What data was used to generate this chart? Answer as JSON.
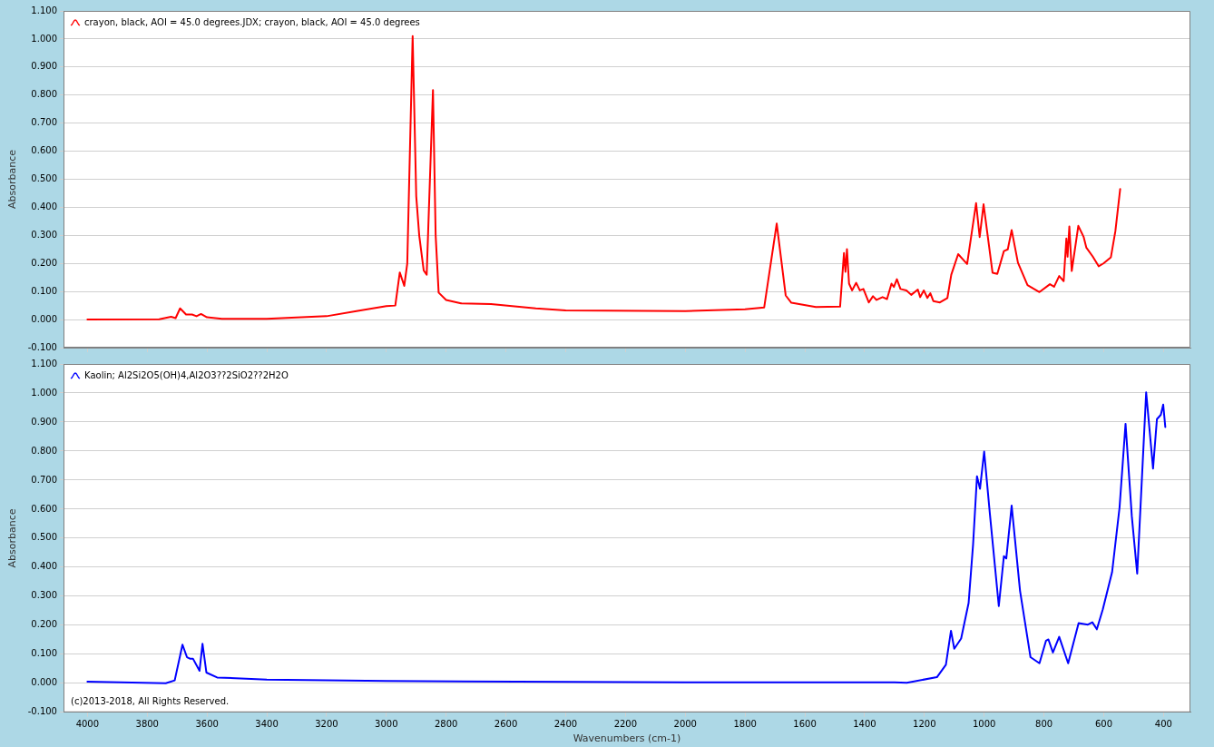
{
  "chart_data": [
    {
      "type": "line",
      "ylabel": "Absorbance",
      "xlim": [
        4080,
        310
      ],
      "xticks": [
        4000,
        3800,
        3600,
        3400,
        3200,
        3000,
        2800,
        2600,
        2400,
        2200,
        2000,
        1800,
        1600,
        1400,
        1200,
        1000,
        800,
        600,
        400
      ],
      "ylim": [
        -0.1,
        1.1
      ],
      "yticks": [
        {
          "value": -0.1,
          "label": "-0.100"
        },
        {
          "value": 0,
          "label": "0.000"
        },
        {
          "value": 0.1,
          "label": "0.100"
        },
        {
          "value": 0.2,
          "label": "0.200"
        },
        {
          "value": 0.3,
          "label": "0.300"
        },
        {
          "value": 0.4,
          "label": "0.400"
        },
        {
          "value": 0.5,
          "label": "0.500"
        },
        {
          "value": 0.6,
          "label": "0.600"
        },
        {
          "value": 0.7,
          "label": "0.700"
        },
        {
          "value": 0.8,
          "label": "0.800"
        },
        {
          "value": 0.9,
          "label": "0.900"
        },
        {
          "value": 1.0,
          "label": "1.000"
        },
        {
          "value": 1.1,
          "label": "1.100"
        }
      ],
      "tick_labels": "y",
      "grid": "y",
      "legend": "top left",
      "marker": "none",
      "line_style": "solid",
      "series": [
        {
          "name": "crayon, black, AOI = 45.0 degrees.JDX; crayon, black, AOI = 45.0 degrees",
          "color": "#ff0000",
          "x": [
            4000,
            3760,
            3720,
            3705,
            3690,
            3670,
            3650,
            3635,
            3620,
            3600,
            3550,
            3400,
            3200,
            3100,
            3000,
            2970,
            2955,
            2940,
            2930,
            2912,
            2900,
            2890,
            2875,
            2865,
            2844,
            2835,
            2825,
            2800,
            2750,
            2650,
            2500,
            2400,
            2000,
            1800,
            1736,
            1694,
            1664,
            1645,
            1563,
            1482,
            1469,
            1464,
            1459,
            1452,
            1442,
            1428,
            1416,
            1404,
            1386,
            1372,
            1360,
            1340,
            1325,
            1310,
            1302,
            1292,
            1280,
            1260,
            1244,
            1222,
            1214,
            1202,
            1190,
            1180,
            1170,
            1148,
            1123,
            1110,
            1087,
            1057,
            1027,
            1015,
            1002,
            972,
            956,
            934,
            921,
            908,
            887,
            855,
            815,
            780,
            766,
            749,
            734,
            725,
            721,
            715,
            707,
            685,
            667,
            658,
            637,
            617,
            601,
            576,
            561,
            545
          ],
          "values": [
            0.0,
            0.001,
            0.01,
            0.005,
            0.04,
            0.018,
            0.018,
            0.012,
            0.02,
            0.008,
            0.003,
            0.003,
            0.012,
            0.03,
            0.048,
            0.05,
            0.168,
            0.12,
            0.2,
            1.01,
            0.44,
            0.3,
            0.175,
            0.16,
            0.818,
            0.3,
            0.096,
            0.07,
            0.058,
            0.055,
            0.04,
            0.033,
            0.03,
            0.037,
            0.043,
            0.342,
            0.086,
            0.06,
            0.045,
            0.046,
            0.237,
            0.17,
            0.251,
            0.128,
            0.104,
            0.131,
            0.104,
            0.109,
            0.061,
            0.083,
            0.07,
            0.08,
            0.073,
            0.128,
            0.116,
            0.144,
            0.109,
            0.104,
            0.088,
            0.107,
            0.08,
            0.104,
            0.077,
            0.094,
            0.066,
            0.061,
            0.077,
            0.16,
            0.233,
            0.198,
            0.415,
            0.294,
            0.411,
            0.167,
            0.163,
            0.244,
            0.25,
            0.319,
            0.203,
            0.123,
            0.098,
            0.126,
            0.117,
            0.155,
            0.137,
            0.289,
            0.224,
            0.332,
            0.173,
            0.334,
            0.294,
            0.256,
            0.225,
            0.19,
            0.2,
            0.222,
            0.315,
            0.465
          ]
        }
      ]
    },
    {
      "type": "line",
      "xlabel": "Wavenumbers (cm-1)",
      "ylabel": "Absorbance",
      "xlim": [
        4080,
        310
      ],
      "xticks": [
        4000,
        3800,
        3600,
        3400,
        3200,
        3000,
        2800,
        2600,
        2400,
        2200,
        2000,
        1800,
        1600,
        1400,
        1200,
        1000,
        800,
        600,
        400
      ],
      "ylim": [
        -0.1,
        1.1
      ],
      "yticks": [
        {
          "value": -0.1,
          "label": "-0.100"
        },
        {
          "value": 0,
          "label": "0.000"
        },
        {
          "value": 0.1,
          "label": "0.100"
        },
        {
          "value": 0.2,
          "label": "0.200"
        },
        {
          "value": 0.3,
          "label": "0.300"
        },
        {
          "value": 0.4,
          "label": "0.400"
        },
        {
          "value": 0.5,
          "label": "0.500"
        },
        {
          "value": 0.6,
          "label": "0.600"
        },
        {
          "value": 0.7,
          "label": "0.700"
        },
        {
          "value": 0.8,
          "label": "0.800"
        },
        {
          "value": 0.9,
          "label": "0.900"
        },
        {
          "value": 1.0,
          "label": "1.000"
        },
        {
          "value": 1.1,
          "label": "1.100"
        }
      ],
      "grid": "y",
      "legend": "top left",
      "marker": "none",
      "line_style": "solid",
      "annotations": [
        "(c)2013-2018, All Rights Reserved."
      ],
      "series": [
        {
          "name": "Kaolin; Al2Si2O5(OH)4,Al2O3??2SiO2??2H2O",
          "color": "#0000ff",
          "x": [
            4000,
            3738,
            3708,
            3682,
            3667,
            3657,
            3647,
            3625,
            3615,
            3602,
            3566,
            3400,
            3000,
            2000,
            1300,
            1259,
            1158,
            1128,
            1111,
            1100,
            1077,
            1052,
            1037,
            1024,
            1014,
            1000,
            981,
            951,
            934,
            926,
            908,
            880,
            845,
            815,
            793,
            785,
            770,
            749,
            719,
            684,
            653,
            638,
            623,
            603,
            572,
            547,
            527,
            506,
            488,
            458,
            435,
            422,
            409,
            401,
            394
          ],
          "values": [
            0.006,
            0.0,
            0.01,
            0.133,
            0.09,
            0.085,
            0.085,
            0.043,
            0.136,
            0.037,
            0.02,
            0.013,
            0.008,
            0.003,
            0.003,
            0.002,
            0.021,
            0.064,
            0.181,
            0.119,
            0.154,
            0.277,
            0.479,
            0.713,
            0.67,
            0.798,
            0.585,
            0.266,
            0.438,
            0.43,
            0.612,
            0.319,
            0.09,
            0.069,
            0.147,
            0.151,
            0.106,
            0.16,
            0.069,
            0.207,
            0.202,
            0.21,
            0.186,
            0.255,
            0.383,
            0.606,
            0.894,
            0.575,
            0.378,
            1.002,
            0.74,
            0.91,
            0.925,
            0.96,
            0.883
          ]
        }
      ]
    }
  ]
}
